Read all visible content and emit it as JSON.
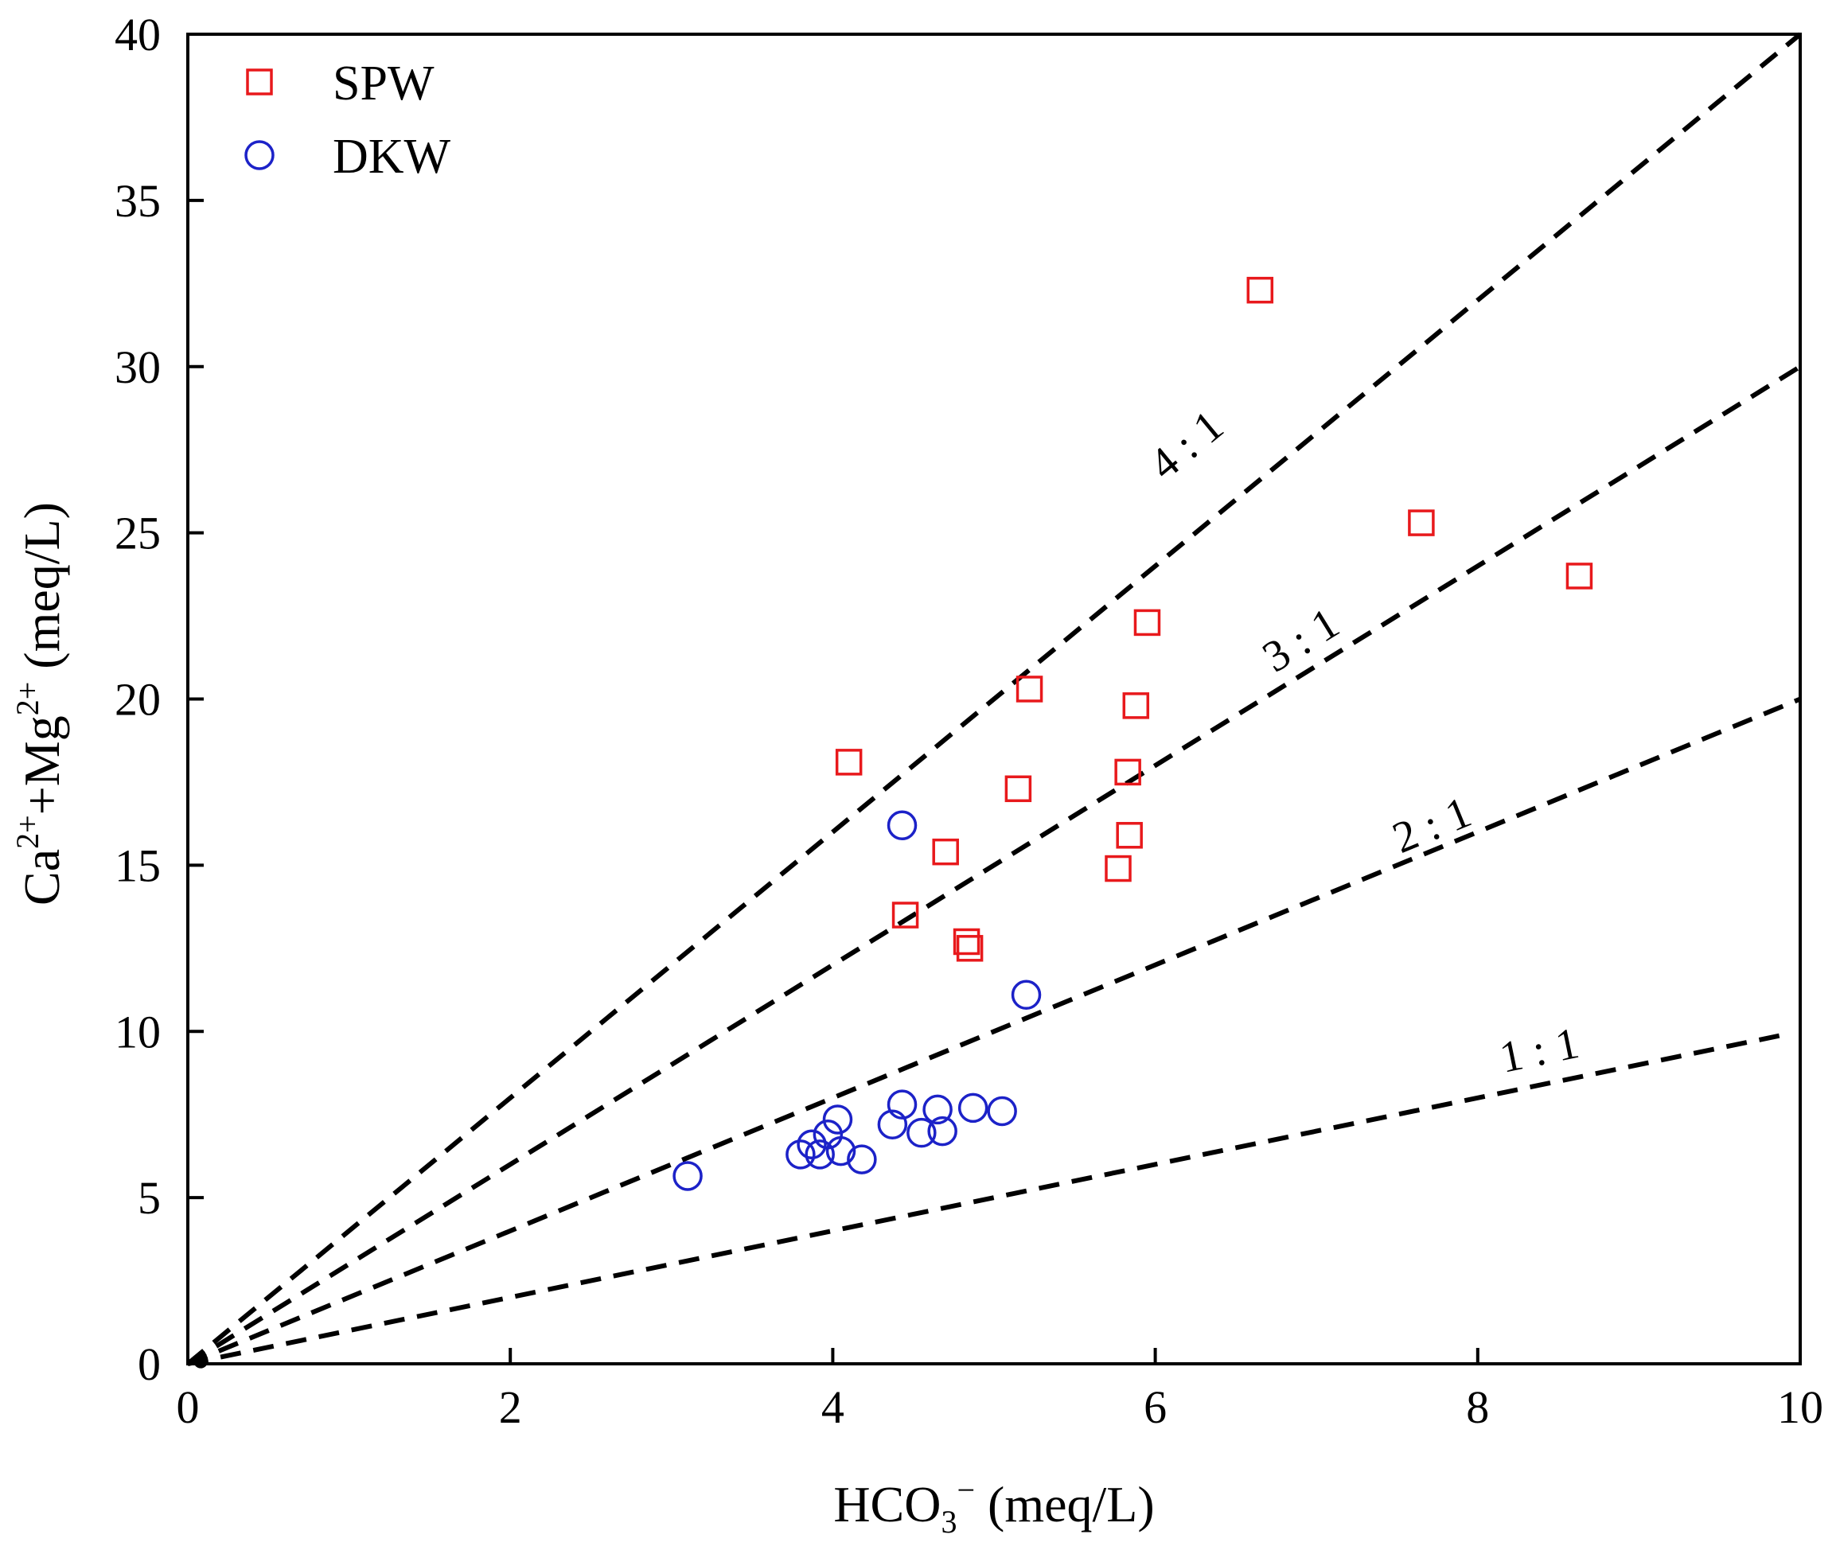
{
  "chart_data": {
    "type": "scatter",
    "xlabel": {
      "base": "HCO",
      "sub": "3",
      "sup": "−",
      "unit": " (meq/L)"
    },
    "ylabel": {
      "part1": "Ca",
      "sup1": "2+",
      "part2": "+Mg",
      "sup2": "2+",
      "unit": " (meq/L)"
    },
    "xlim": [
      0,
      10
    ],
    "ylim": [
      0,
      40
    ],
    "xticks": [
      0,
      2,
      4,
      6,
      8,
      10
    ],
    "yticks": [
      0,
      5,
      10,
      15,
      20,
      25,
      30,
      35,
      40
    ],
    "legend_position": "top-left",
    "series": [
      {
        "name": "SPW",
        "marker": "square",
        "color": "#e8191c",
        "points": [
          [
            4.1,
            18.1
          ],
          [
            4.45,
            13.5
          ],
          [
            4.7,
            15.4
          ],
          [
            4.83,
            12.7
          ],
          [
            4.85,
            12.5
          ],
          [
            5.15,
            17.3
          ],
          [
            5.22,
            20.3
          ],
          [
            5.77,
            14.9
          ],
          [
            5.83,
            17.8
          ],
          [
            5.84,
            15.9
          ],
          [
            5.88,
            19.8
          ],
          [
            5.95,
            22.3
          ],
          [
            6.65,
            32.3
          ],
          [
            7.65,
            25.3
          ],
          [
            8.63,
            23.7
          ]
        ]
      },
      {
        "name": "DKW",
        "marker": "circle",
        "color": "#1c22c8",
        "points": [
          [
            3.1,
            5.65
          ],
          [
            3.8,
            6.3
          ],
          [
            3.87,
            6.6
          ],
          [
            3.92,
            6.3
          ],
          [
            3.97,
            6.9
          ],
          [
            4.03,
            7.35
          ],
          [
            4.05,
            6.4
          ],
          [
            4.18,
            6.15
          ],
          [
            4.37,
            7.2
          ],
          [
            4.43,
            7.8
          ],
          [
            4.43,
            16.2
          ],
          [
            4.55,
            6.95
          ],
          [
            4.65,
            7.65
          ],
          [
            4.68,
            7.0
          ],
          [
            4.87,
            7.7
          ],
          [
            5.05,
            7.6
          ],
          [
            5.2,
            11.1
          ]
        ]
      }
    ],
    "reference_lines": [
      {
        "label": "4 : 1",
        "slope": 4,
        "x_end": 10
      },
      {
        "label": "3 : 1",
        "slope": 3,
        "x_end": 10
      },
      {
        "label": "2 : 1",
        "slope": 2,
        "x_end": 10
      },
      {
        "label": "1 : 1",
        "slope": 1,
        "x_end": 9.87
      }
    ]
  }
}
